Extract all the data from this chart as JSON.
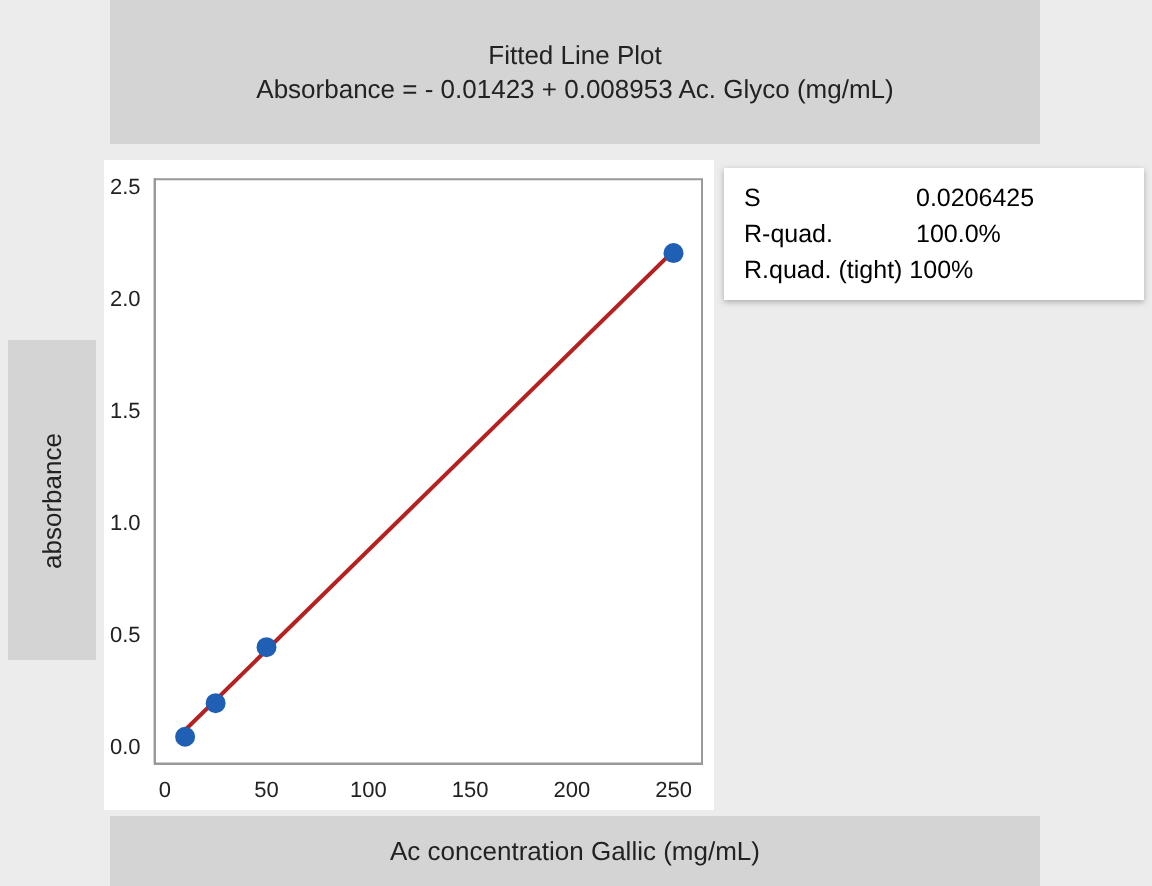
{
  "chart_data": {
    "type": "scatter",
    "title": "Fitted Line Plot",
    "subtitle": "Absorbance = - 0.01423 + 0.008953 Ac. Glyco (mg/mL)",
    "xlabel": "Ac concentration Gallic (mg/mL)",
    "ylabel": "absorbance",
    "x": [
      10,
      25,
      50,
      250
    ],
    "series": [
      {
        "type": "scatter",
        "color": "#1f5fb4",
        "values": [
          0.05,
          0.2,
          0.45,
          2.21
        ],
        "marker": "circle"
      },
      {
        "type": "line",
        "color": "#b52020",
        "x": [
          10,
          250
        ],
        "values": [
          0.08,
          2.22
        ],
        "marker": "none"
      }
    ],
    "xlim": [
      -5,
      264
    ],
    "xticks": [
      0,
      50,
      100,
      150,
      200,
      250
    ],
    "ylim": [
      -0.07,
      2.54
    ],
    "yticks": [
      {
        "value": 0,
        "label": "0.0"
      },
      {
        "value": 0.5,
        "label": "0.5"
      },
      {
        "value": 1,
        "label": "1.0"
      },
      {
        "value": 1.5,
        "label": "1.5"
      },
      {
        "value": 2,
        "label": "2.0"
      },
      {
        "value": 2.5,
        "label": "2.5"
      }
    ],
    "grid": false,
    "legend": false,
    "annotations": [
      "S",
      "0.0206425",
      "R-quad.",
      "100.0%",
      "R.quad. (tight) 100%"
    ]
  }
}
